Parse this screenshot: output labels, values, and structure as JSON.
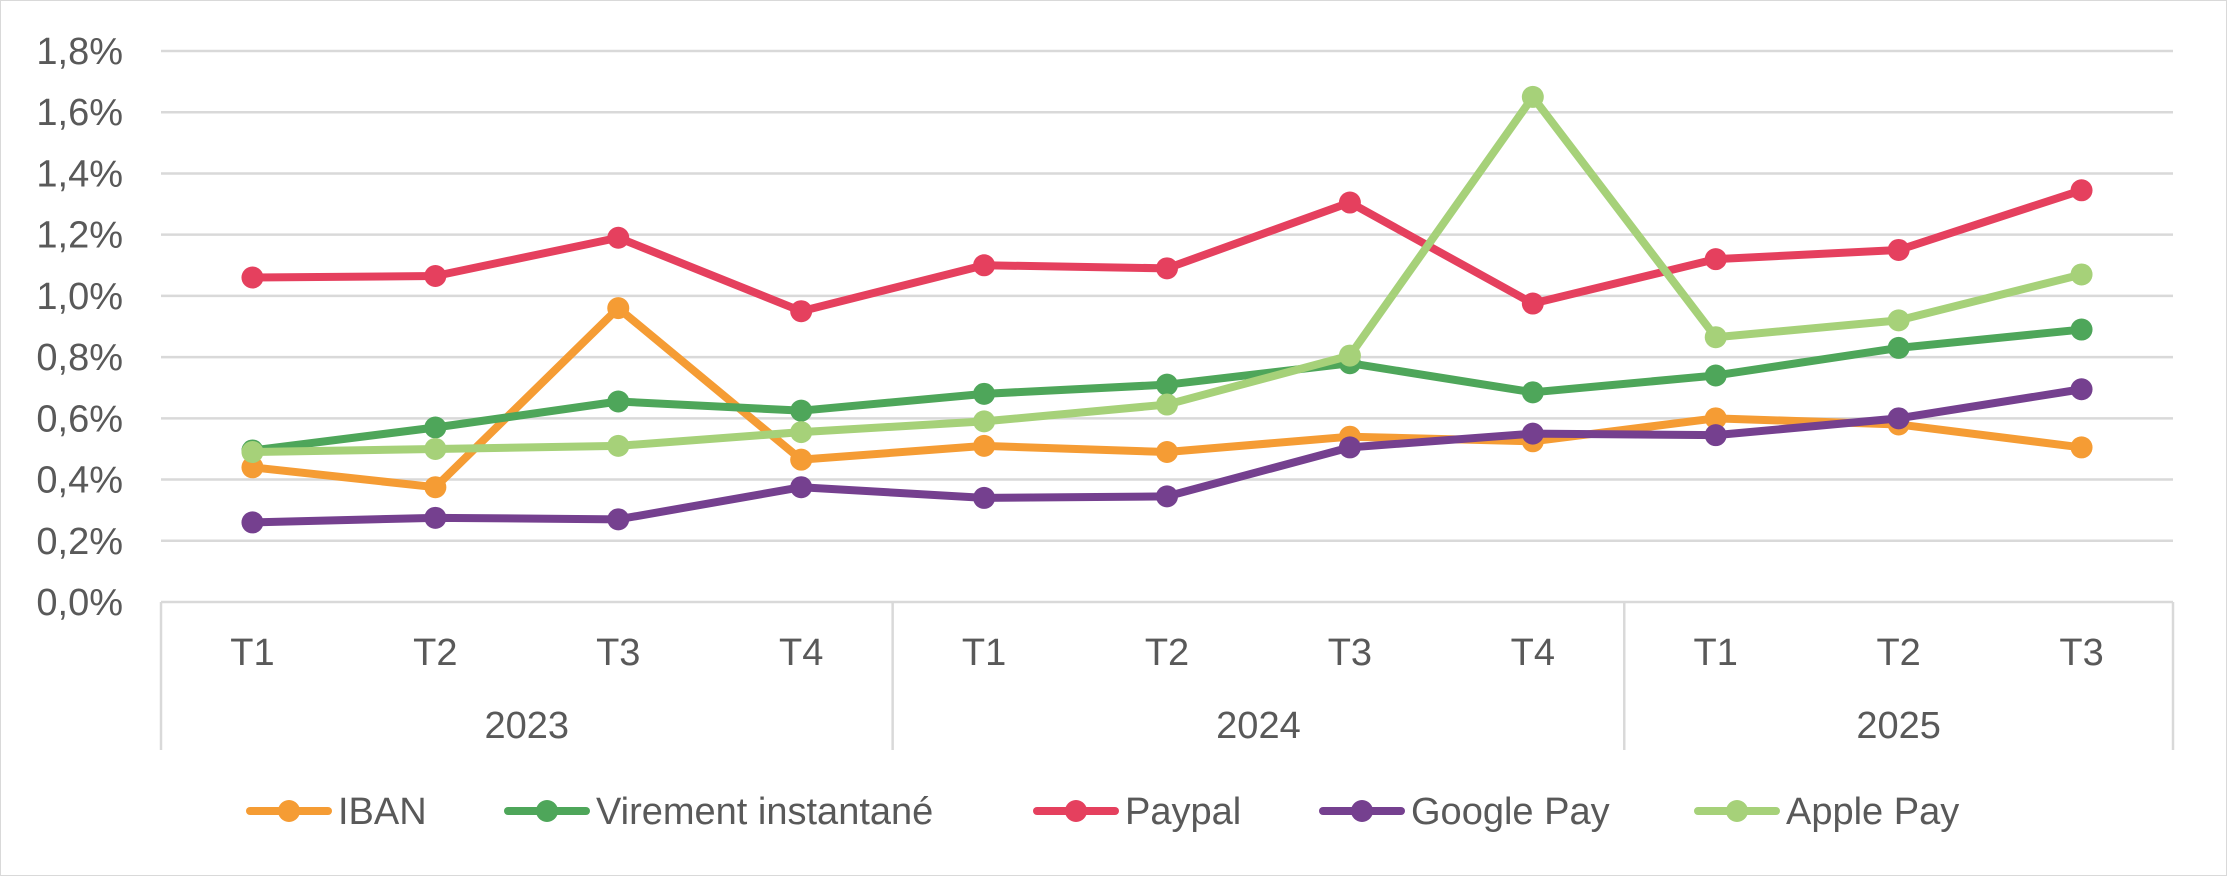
{
  "chart_data": {
    "type": "line",
    "title": "",
    "xlabel": "",
    "ylabel": "",
    "ylim": [
      0,
      1.8
    ],
    "y_ticks": [
      "0,0%",
      "0,2%",
      "0,4%",
      "0,6%",
      "0,8%",
      "1,0%",
      "1,2%",
      "1,4%",
      "1,6%",
      "1,8%"
    ],
    "y_tick_values": [
      0,
      0.2,
      0.4,
      0.6,
      0.8,
      1.0,
      1.2,
      1.4,
      1.6,
      1.8
    ],
    "grid": true,
    "legend_position": "bottom",
    "categories": [
      "T1",
      "T2",
      "T3",
      "T4",
      "T1",
      "T2",
      "T3",
      "T4",
      "T1",
      "T2",
      "T3"
    ],
    "groups": [
      {
        "label": "2023",
        "count": 4
      },
      {
        "label": "2024",
        "count": 4
      },
      {
        "label": "2025",
        "count": 3
      }
    ],
    "series": [
      {
        "name": "IBAN",
        "color": "#F59C34",
        "values": [
          0.44,
          0.375,
          0.96,
          0.465,
          0.51,
          0.49,
          0.54,
          0.525,
          0.6,
          0.58,
          0.505
        ]
      },
      {
        "name": "Virement instantané",
        "color": "#4EA65A",
        "values": [
          0.495,
          0.57,
          0.655,
          0.625,
          0.68,
          0.71,
          0.78,
          0.685,
          0.74,
          0.83,
          0.89
        ]
      },
      {
        "name": "Paypal",
        "color": "#E5405E",
        "values": [
          1.06,
          1.065,
          1.19,
          0.95,
          1.1,
          1.09,
          1.305,
          0.975,
          1.12,
          1.15,
          1.345
        ]
      },
      {
        "name": "Google Pay",
        "color": "#75408F",
        "values": [
          0.26,
          0.275,
          0.27,
          0.375,
          0.34,
          0.345,
          0.505,
          0.55,
          0.545,
          0.6,
          0.695
        ]
      },
      {
        "name": "Apple Pay",
        "color": "#A6D179",
        "values": [
          0.49,
          0.5,
          0.51,
          0.555,
          0.59,
          0.645,
          0.805,
          1.65,
          0.865,
          0.92,
          1.07
        ]
      }
    ]
  }
}
